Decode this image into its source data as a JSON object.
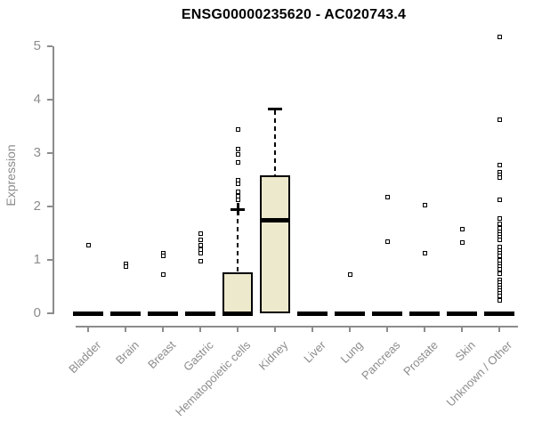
{
  "chart_data": {
    "type": "boxplot",
    "title": "ENSG00000235620 - AC020743.4",
    "ylabel": "Expression",
    "ylim": [
      0,
      5
    ],
    "yticks": [
      0,
      1,
      2,
      3,
      4,
      5
    ],
    "grid": false,
    "categories": [
      "Bladder",
      "Brain",
      "Breast",
      "Gastric",
      "Hematopoietic cells",
      "Kidney",
      "Liver",
      "Lung",
      "Pancreas",
      "Prostate",
      "Skin",
      "Unknown / Other"
    ],
    "boxes": [
      {
        "category": "Bladder",
        "q1": 0,
        "median": 0,
        "q3": 0,
        "whisker_low": 0,
        "whisker_high": 0,
        "whisker_cap": "none",
        "outliers": [
          1.27
        ]
      },
      {
        "category": "Brain",
        "q1": 0,
        "median": 0,
        "q3": 0,
        "whisker_low": 0,
        "whisker_high": 0,
        "whisker_cap": "none",
        "outliers": [
          0.93,
          0.87
        ]
      },
      {
        "category": "Breast",
        "q1": 0,
        "median": 0,
        "q3": 0,
        "whisker_low": 0,
        "whisker_high": 0,
        "whisker_cap": "none",
        "outliers": [
          1.12,
          1.07,
          0.73
        ]
      },
      {
        "category": "Gastric",
        "q1": 0,
        "median": 0,
        "q3": 0,
        "whisker_low": 0,
        "whisker_high": 0,
        "whisker_cap": "none",
        "outliers": [
          1.5,
          1.37,
          1.28,
          1.2,
          1.13,
          0.98
        ]
      },
      {
        "category": "Hematopoietic cells",
        "q1": 0,
        "median": 0,
        "q3": 0.76,
        "whisker_low": 0,
        "whisker_high": 1.95,
        "whisker_cap": "plus",
        "outliers": [
          3.45,
          3.08,
          2.97,
          2.82,
          2.5,
          2.42,
          2.28,
          2.2,
          2.12
        ]
      },
      {
        "category": "Kidney",
        "q1": 0,
        "median": 1.75,
        "q3": 2.58,
        "whisker_low": 0,
        "whisker_high": 3.83,
        "whisker_cap": "bar",
        "outliers": []
      },
      {
        "category": "Liver",
        "q1": 0,
        "median": 0,
        "q3": 0,
        "whisker_low": 0,
        "whisker_high": 0,
        "whisker_cap": "none",
        "outliers": []
      },
      {
        "category": "Lung",
        "q1": 0,
        "median": 0,
        "q3": 0,
        "whisker_low": 0,
        "whisker_high": 0,
        "whisker_cap": "none",
        "outliers": [
          0.73
        ]
      },
      {
        "category": "Pancreas",
        "q1": 0,
        "median": 0,
        "q3": 0,
        "whisker_low": 0,
        "whisker_high": 0,
        "whisker_cap": "none",
        "outliers": [
          2.17,
          1.35
        ]
      },
      {
        "category": "Prostate",
        "q1": 0,
        "median": 0,
        "q3": 0,
        "whisker_low": 0,
        "whisker_high": 0,
        "whisker_cap": "none",
        "outliers": [
          2.03,
          1.13
        ]
      },
      {
        "category": "Skin",
        "q1": 0,
        "median": 0,
        "q3": 0,
        "whisker_low": 0,
        "whisker_high": 0,
        "whisker_cap": "none",
        "outliers": [
          1.58,
          1.32
        ]
      },
      {
        "category": "Unknown / Other",
        "q1": 0,
        "median": 0,
        "q3": 0,
        "whisker_low": 0,
        "whisker_high": 0,
        "whisker_cap": "none",
        "outliers": [
          5.17,
          3.63,
          2.78,
          2.65,
          2.6,
          2.55,
          2.12,
          1.78,
          1.67,
          1.6,
          1.53,
          1.47,
          1.42,
          1.37,
          1.25,
          1.18,
          1.12,
          1.07,
          1.0,
          0.93,
          0.88,
          0.82,
          0.75,
          0.62,
          0.57,
          0.52,
          0.47,
          0.42,
          0.37,
          0.33,
          0.25
        ]
      }
    ],
    "styles": {
      "box_fill": "#EDE9CC",
      "box_border": "#000000",
      "median_color": "#000000",
      "axis_color": "#8C8C8C",
      "label_color": "#8C8C8C",
      "title_color": "#000000",
      "background": "#FFFFFF"
    }
  }
}
